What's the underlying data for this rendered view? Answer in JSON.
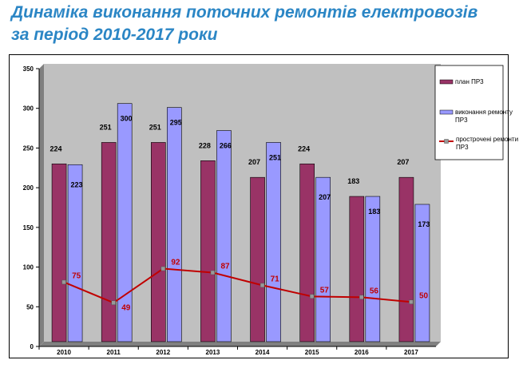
{
  "title": {
    "line1": "Динаміка виконання поточних ремонтів електровозів",
    "line2": "за період 2010-2017 роки"
  },
  "colors": {
    "title": "#2b86c5",
    "plan_bar": "#993366",
    "done_bar": "#9999ff",
    "overdue_line": "#c00000",
    "plot_bg": "#c0c0c0"
  },
  "chart_data": {
    "type": "bar",
    "categories": [
      "2010",
      "2011",
      "2012",
      "2013",
      "2014",
      "2015",
      "2016",
      "2017"
    ],
    "series": [
      {
        "name": "план ПР3",
        "kind": "bar",
        "values": [
          224,
          251,
          251,
          228,
          207,
          224,
          183,
          207
        ]
      },
      {
        "name": "виконання ремонту ПР3",
        "kind": "bar",
        "values": [
          223,
          300,
          295,
          266,
          251,
          207,
          183,
          173
        ]
      },
      {
        "name": "прострочені ремонти ПР3",
        "kind": "line",
        "values": [
          75,
          49,
          92,
          87,
          71,
          57,
          56,
          50
        ]
      }
    ],
    "ylim": [
      0,
      350
    ],
    "yticks": [
      0,
      50,
      100,
      150,
      200,
      250,
      300,
      350
    ],
    "grid": false,
    "legend_position": "right"
  }
}
